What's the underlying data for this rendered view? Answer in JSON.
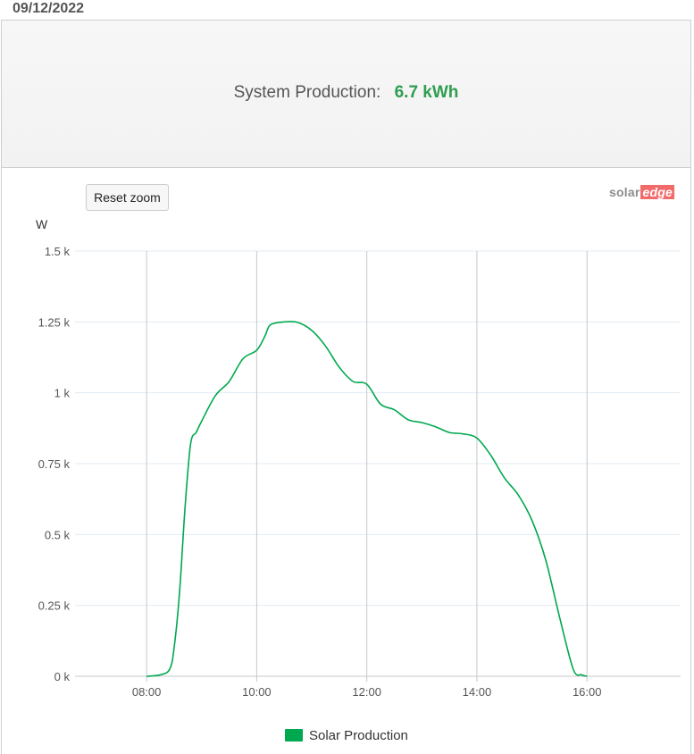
{
  "header": {
    "date": "09/12/2022"
  },
  "summary": {
    "label": "System Production:",
    "value": "6.7 kWh",
    "value_color": "#2e9e4f"
  },
  "toolbar": {
    "reset_zoom_label": "Reset zoom"
  },
  "logo": {
    "part1": "solar",
    "part2": "edge"
  },
  "chart_data": {
    "type": "line",
    "title": "",
    "ylabel": "W",
    "xlabel": "",
    "x_unit": "hours",
    "xlim": [
      6.7,
      17.7
    ],
    "ylim": [
      0,
      1500
    ],
    "x_ticks": [
      8,
      10,
      12,
      14,
      16
    ],
    "x_tick_labels": [
      "08:00",
      "10:00",
      "12:00",
      "14:00",
      "16:00"
    ],
    "y_ticks": [
      0,
      250,
      500,
      750,
      1000,
      1250,
      1500
    ],
    "y_tick_labels": [
      "0 k",
      "0.25 k",
      "0.5 k",
      "0.75 k",
      "1 k",
      "1.25 k",
      "1.5 k"
    ],
    "grid": true,
    "legend": "bottom-center",
    "series": [
      {
        "name": "Solar Production",
        "color": "#00a84f",
        "x": [
          8.0,
          8.25,
          8.42,
          8.5,
          8.6,
          8.7,
          8.8,
          8.9,
          9.0,
          9.25,
          9.5,
          9.75,
          10.0,
          10.15,
          10.25,
          10.5,
          10.75,
          11.0,
          11.25,
          11.5,
          11.75,
          12.0,
          12.25,
          12.5,
          12.75,
          13.0,
          13.25,
          13.5,
          13.75,
          14.0,
          14.25,
          14.5,
          14.75,
          15.0,
          15.25,
          15.5,
          15.75,
          15.9,
          16.0
        ],
        "y": [
          0,
          5,
          25,
          100,
          300,
          600,
          820,
          860,
          900,
          990,
          1040,
          1120,
          1150,
          1200,
          1240,
          1250,
          1248,
          1220,
          1165,
          1090,
          1040,
          1030,
          960,
          940,
          905,
          895,
          880,
          860,
          855,
          840,
          780,
          700,
          640,
          550,
          410,
          210,
          25,
          5,
          0
        ]
      }
    ]
  }
}
